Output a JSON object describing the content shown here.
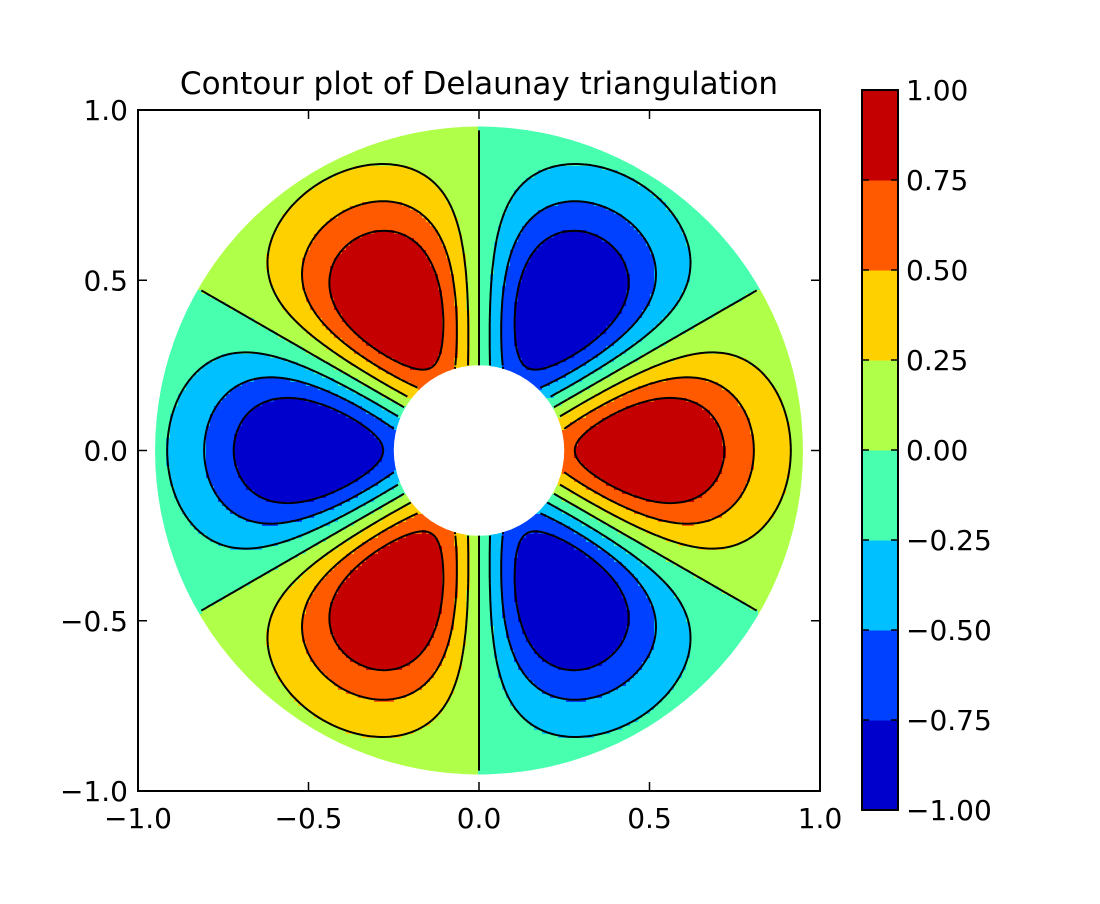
{
  "chart_data": {
    "type": "contour",
    "title": "Contour plot of Delaunay triangulation",
    "xlabel": "",
    "ylabel": "",
    "xlim": [
      -1.0,
      1.0
    ],
    "ylim": [
      -1.0,
      1.0
    ],
    "x_ticks": [
      "−1.0",
      "−0.5",
      "0.0",
      "0.5",
      "1.0"
    ],
    "y_ticks": [
      "−1.0",
      "−0.5",
      "0.0",
      "0.5",
      "1.0"
    ],
    "x_tick_values": [
      -1.0,
      -0.5,
      0.0,
      0.5,
      1.0
    ],
    "y_tick_values": [
      -1.0,
      -0.5,
      0.0,
      0.5,
      1.0
    ],
    "domain": {
      "shape": "annulus",
      "inner_radius": 0.25,
      "outer_radius": 0.95
    },
    "field": {
      "angular_frequency": 3,
      "peak_radius": 0.5,
      "description_values": "z = cos(3*theta) * radial profile, positive lobes at theta = 0, 120, 240 degrees; negative lobes at 60, 180, 300 degrees"
    },
    "levels": [
      -1.0,
      -0.75,
      -0.5,
      -0.25,
      0.0,
      0.25,
      0.5,
      0.75,
      1.0
    ],
    "level_colors": [
      "#0000cd",
      "#0040ff",
      "#00c0ff",
      "#48ffb0",
      "#b0ff48",
      "#ffd000",
      "#ff5a00",
      "#c40000"
    ],
    "contour_line_levels": [
      -0.75,
      -0.5,
      -0.25,
      0.0,
      0.25,
      0.5,
      0.75
    ],
    "negative_lines_style": "dashed",
    "colorbar": {
      "ticks": [
        "−1.00",
        "−0.75",
        "−0.50",
        "−0.25",
        "0.00",
        "0.25",
        "0.50",
        "0.75",
        "1.00"
      ],
      "tick_values": [
        -1.0,
        -0.75,
        -0.5,
        -0.25,
        0.0,
        0.25,
        0.5,
        0.75,
        1.0
      ],
      "placement": "right"
    },
    "grid": false
  }
}
